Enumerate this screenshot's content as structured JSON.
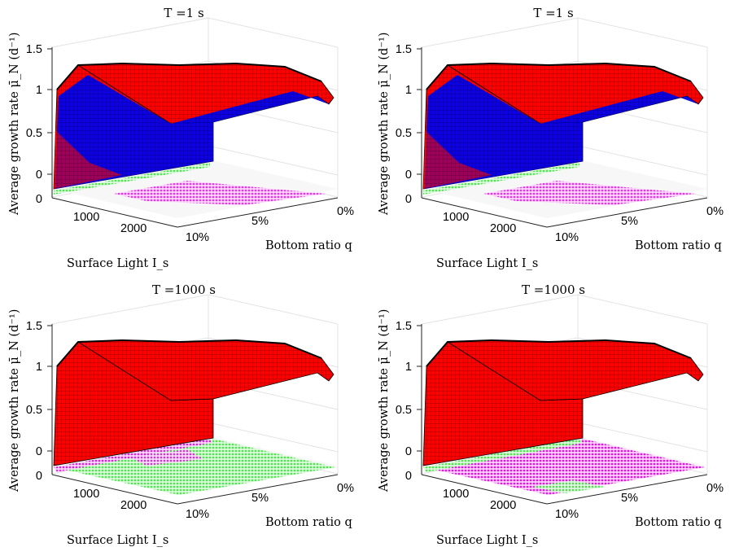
{
  "colors": {
    "surface_red": "#ff0000",
    "surface_blue": "#0000ee",
    "edge": "#000000",
    "marker_green": "#44ee44",
    "marker_magenta": "#ff00ff",
    "grid": "#e3e3e3"
  },
  "chart_data": [
    {
      "type": "surface",
      "title": "T =1 s",
      "zlabel": "Average growth rate μ̄_N (d⁻¹)",
      "xlabel": "Surface Light I_s",
      "ylabel": "Bottom ratio q",
      "zticks": [
        "1.5",
        "1",
        "0.5",
        "0"
      ],
      "base_tick": "0",
      "xticks": [
        "1000",
        "2000"
      ],
      "yticks": [
        "10%",
        "5%",
        "0%"
      ],
      "zlim": [
        -0.2,
        1.5
      ],
      "xlim": [
        0,
        2600
      ],
      "ylim": [
        0,
        0.1
      ],
      "grid": true,
      "blue_fraction": 0.55,
      "floor_markers": "green strip along 0% edge; magenta band across mid region"
    },
    {
      "type": "surface",
      "title": "T =1 s",
      "zlabel": "Average growth rate μ̄_N (d⁻¹)",
      "xlabel": "Surface Light I_s",
      "ylabel": "Bottom ratio q",
      "zticks": [
        "1.5",
        "1",
        "0.5",
        "0"
      ],
      "base_tick": "0",
      "xticks": [
        "1000",
        "2000"
      ],
      "yticks": [
        "10%",
        "5%",
        "0%"
      ],
      "zlim": [
        -0.2,
        1.5
      ],
      "xlim": [
        0,
        2600
      ],
      "ylim": [
        0,
        0.1
      ],
      "grid": true,
      "blue_fraction": 0.6,
      "floor_markers": "green strip along 0% edge; magenta band across mid region"
    },
    {
      "type": "surface",
      "title": "T =1000 s",
      "zlabel": "Average growth rate μ̄_N (d⁻¹)",
      "xlabel": "Surface Light I_s",
      "ylabel": "Bottom ratio q",
      "zticks": [
        "1.5",
        "1",
        "0.5",
        "0"
      ],
      "base_tick": "0",
      "xticks": [
        "1000",
        "2000"
      ],
      "yticks": [
        "10%",
        "5%",
        "0%"
      ],
      "zlim": [
        -0.2,
        1.5
      ],
      "xlim": [
        0,
        2600
      ],
      "ylim": [
        0,
        0.1
      ],
      "grid": true,
      "blue_fraction": 0,
      "floor_markers": "floor mostly green with magenta patches"
    },
    {
      "type": "surface",
      "title": "T =1000 s",
      "zlabel": "Average growth rate μ̄_N (d⁻¹)",
      "xlabel": "Surface Light I_s",
      "ylabel": "Bottom ratio q",
      "zticks": [
        "1.5",
        "1",
        "0.5",
        "0"
      ],
      "base_tick": "0",
      "xticks": [
        "1000",
        "2000"
      ],
      "yticks": [
        "10%",
        "5%",
        "0%"
      ],
      "zlim": [
        -0.2,
        1.5
      ],
      "xlim": [
        0,
        2600
      ],
      "ylim": [
        0,
        0.1
      ],
      "grid": true,
      "blue_fraction": 0,
      "floor_markers": "floor mostly magenta with a green patch"
    }
  ]
}
